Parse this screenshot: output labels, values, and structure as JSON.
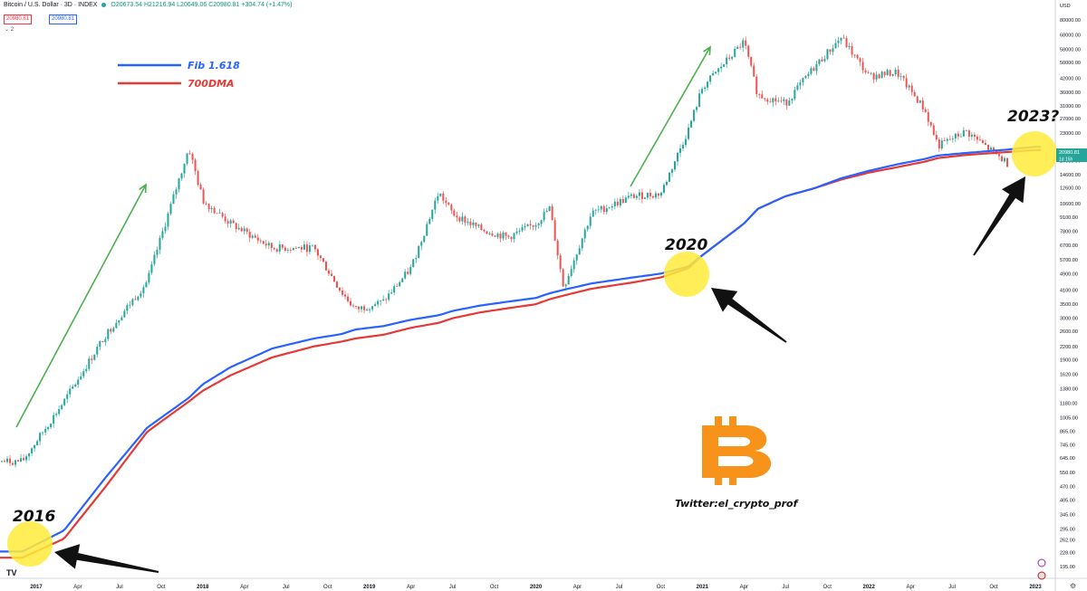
{
  "header": {
    "symbol": "Bitcoin / U.S. Dollar · 3D · INDEX",
    "ohlc": "O20673.54 H21216.94 L20649.06 C20980.81 +304.74 (+1.47%)",
    "pill_red": "20980.81",
    "pill_blue": "20980.81",
    "sub_count": "2"
  },
  "price_tag": {
    "value": "20980.81",
    "sub": "1d 15h"
  },
  "axis": {
    "currency": "USD"
  },
  "brand": {
    "tv_logo": "TV",
    "logo": "bitcoin-logo"
  },
  "annotations": {
    "label_2016": "2016",
    "label_2020": "2020",
    "label_2023": "2023?",
    "twitter": "Twitter:el_crypto_prof"
  },
  "colors": {
    "up": "#26a69a",
    "down": "#ef5350",
    "fib": "#2962ff",
    "dma": "#e53935",
    "highlight": "#ffeb3b",
    "bitcoin": "#f7931a",
    "green_arrow": "#4caf50"
  },
  "chart_data": {
    "type": "line",
    "title": "Bitcoin / U.S. Dollar · 3D · INDEX",
    "y_scale": "log",
    "ylim": [
      195,
      92000
    ],
    "grid": false,
    "legend_position": "top-left",
    "x_ticks": [
      "2017",
      "Apr",
      "Jul",
      "Oct",
      "2018",
      "Apr",
      "Jul",
      "Oct",
      "2019",
      "Apr",
      "Jul",
      "Oct",
      "2020",
      "Apr",
      "Jul",
      "Oct",
      "2021",
      "Apr",
      "Jul",
      "Oct",
      "2022",
      "Apr",
      "Jul",
      "Oct",
      "2023"
    ],
    "y_ticks": [
      "80000.00",
      "68000.00",
      "58000.00",
      "50000.00",
      "42000.00",
      "36000.00",
      "31000.00",
      "27000.00",
      "23000.00",
      "17000.00",
      "14600.00",
      "12600.00",
      "10600.00",
      "9100.00",
      "7800.00",
      "6700.00",
      "5700.00",
      "4900.00",
      "4100.00",
      "3500.00",
      "3000.00",
      "2600.00",
      "2200.00",
      "1900.00",
      "1620.00",
      "1380.00",
      "1180.00",
      "1005.00",
      "865.00",
      "745.00",
      "645.00",
      "550.00",
      "470.00",
      "405.00",
      "345.00",
      "295.00",
      "262.00",
      "228.00",
      "195.00"
    ],
    "x": [
      "2016-12",
      "2017-03",
      "2017-06",
      "2017-09",
      "2017-12",
      "2018-01",
      "2018-03",
      "2018-06",
      "2018-09",
      "2018-11",
      "2018-12",
      "2019-02",
      "2019-04",
      "2019-06",
      "2019-07",
      "2019-09",
      "2019-11",
      "2020-01",
      "2020-02",
      "2020-03",
      "2020-05",
      "2020-08",
      "2020-10",
      "2020-12",
      "2021-01",
      "2021-04",
      "2021-05",
      "2021-07",
      "2021-09",
      "2021-11",
      "2022-01",
      "2022-03",
      "2022-05",
      "2022-06",
      "2022-08",
      "2022-11",
      "2023-01"
    ],
    "series": [
      {
        "name": "BTCUSD",
        "style": "candles",
        "values": [
          620,
          1200,
          2500,
          4500,
          19600,
          11000,
          8500,
          6500,
          6500,
          4000,
          3300,
          3600,
          5200,
          12000,
          9500,
          8000,
          7300,
          8500,
          10100,
          4200,
          9500,
          11500,
          11800,
          24000,
          38000,
          63000,
          35000,
          32000,
          47000,
          66000,
          43000,
          45000,
          30000,
          20000,
          23500,
          16500,
          20980
        ]
      },
      {
        "name": "Fib 1.618",
        "style": "line",
        "values": [
          230,
          290,
          520,
          900,
          1250,
          1450,
          1750,
          2150,
          2400,
          2520,
          2650,
          2750,
          2950,
          3100,
          3250,
          3450,
          3600,
          3750,
          3950,
          4100,
          4400,
          4700,
          4900,
          5300,
          6000,
          8500,
          10000,
          11500,
          12500,
          14000,
          15200,
          16300,
          17300,
          18000,
          18500,
          19200,
          19800
        ]
      },
      {
        "name": "700DMA",
        "style": "line",
        "values": [
          215,
          265,
          470,
          860,
          1200,
          1350,
          1600,
          1950,
          2200,
          2320,
          2400,
          2500,
          2700,
          2850,
          3000,
          3200,
          3350,
          3500,
          3700,
          3850,
          4150,
          4450,
          4700,
          5200,
          6000,
          8500,
          10000,
          11500,
          12500,
          13800,
          14900,
          15800,
          16800,
          17500,
          18100,
          18700,
          19100
        ]
      }
    ]
  }
}
